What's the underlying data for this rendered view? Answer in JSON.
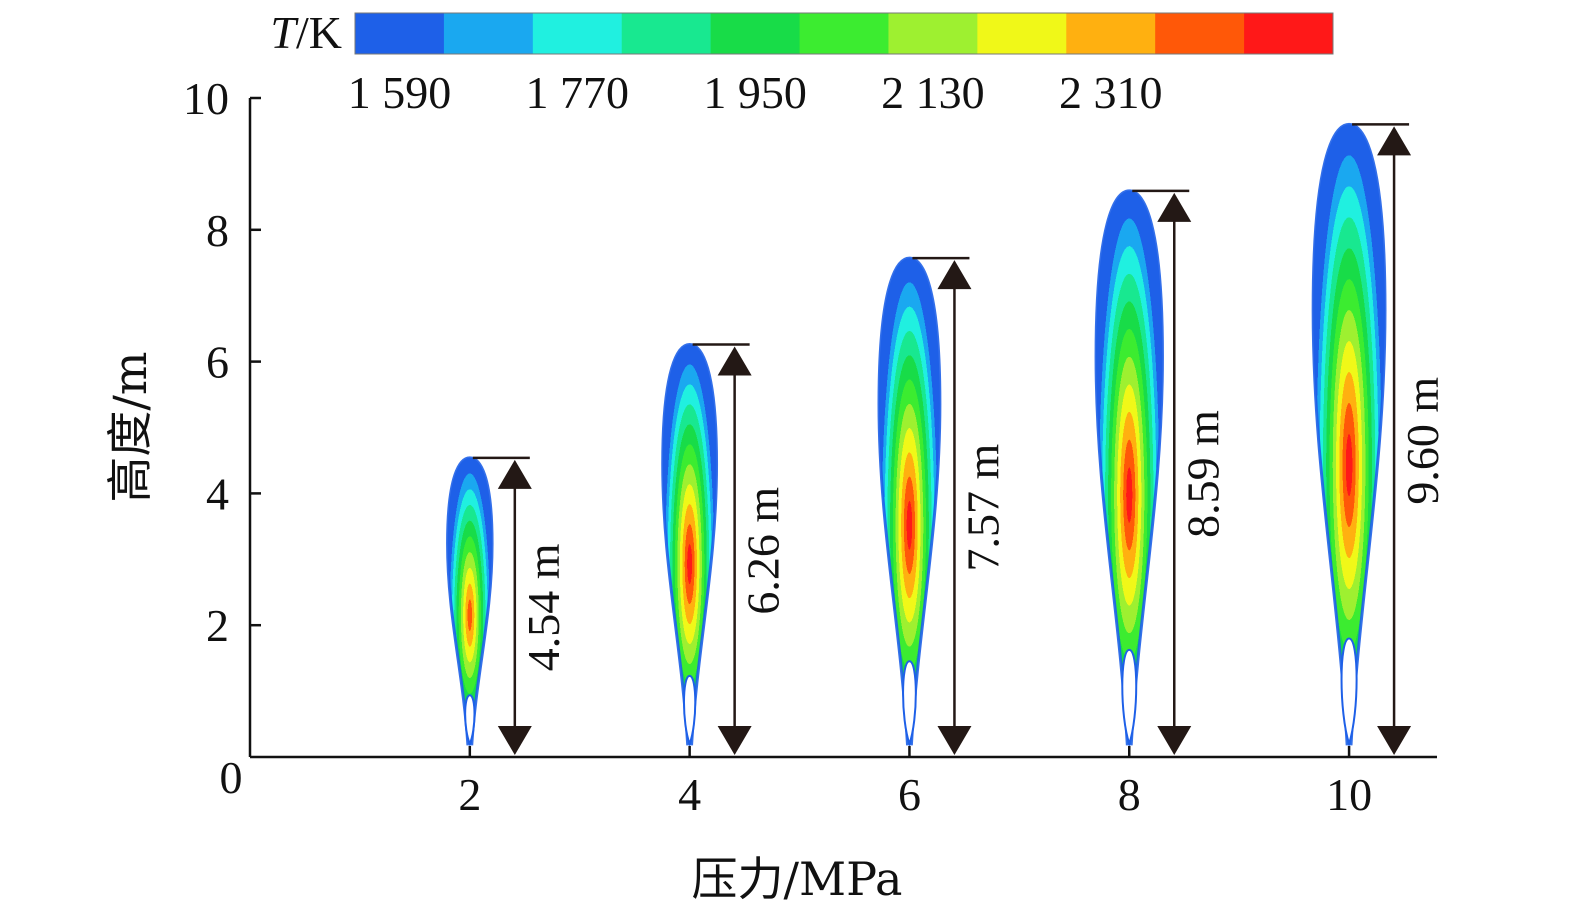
{
  "chart_data": {
    "type": "bar",
    "xlabel": "压力/MPa",
    "ylabel": "高度/m",
    "x_ticks": [
      "0",
      "2",
      "4",
      "6",
      "8",
      "10"
    ],
    "y_ticks": [
      "2",
      "4",
      "6",
      "8",
      "10"
    ],
    "xlim": [
      0,
      10.8
    ],
    "ylim": [
      0,
      10
    ],
    "categories": [
      "2",
      "4",
      "6",
      "8",
      "10"
    ],
    "x": [
      2,
      4,
      6,
      8,
      10
    ],
    "values": [
      4.54,
      6.26,
      7.57,
      8.59,
      9.6
    ],
    "value_labels": [
      "4.54 m",
      "6.26 m",
      "7.57 m",
      "8.59 m",
      "9.60 m"
    ],
    "flame_max_temperature_K": [
      2310,
      2400,
      2490,
      2490,
      2490
    ],
    "colorbar": {
      "title_italic": "T",
      "title_rest": "/K",
      "tick_labels": [
        "1 590",
        "1 770",
        "1 950",
        "2 130",
        "2 310"
      ],
      "colors": [
        "#1e60e8",
        "#1aa8f0",
        "#20f0e0",
        "#18e890",
        "#18dc48",
        "#3cec30",
        "#9ef030",
        "#f0f818",
        "#ffb010",
        "#ff5808",
        "#ff1818"
      ],
      "levels_K": [
        1500,
        1590,
        1680,
        1770,
        1860,
        1950,
        2040,
        2130,
        2220,
        2310,
        2400,
        2490
      ]
    },
    "grid": false,
    "legend": "top"
  }
}
